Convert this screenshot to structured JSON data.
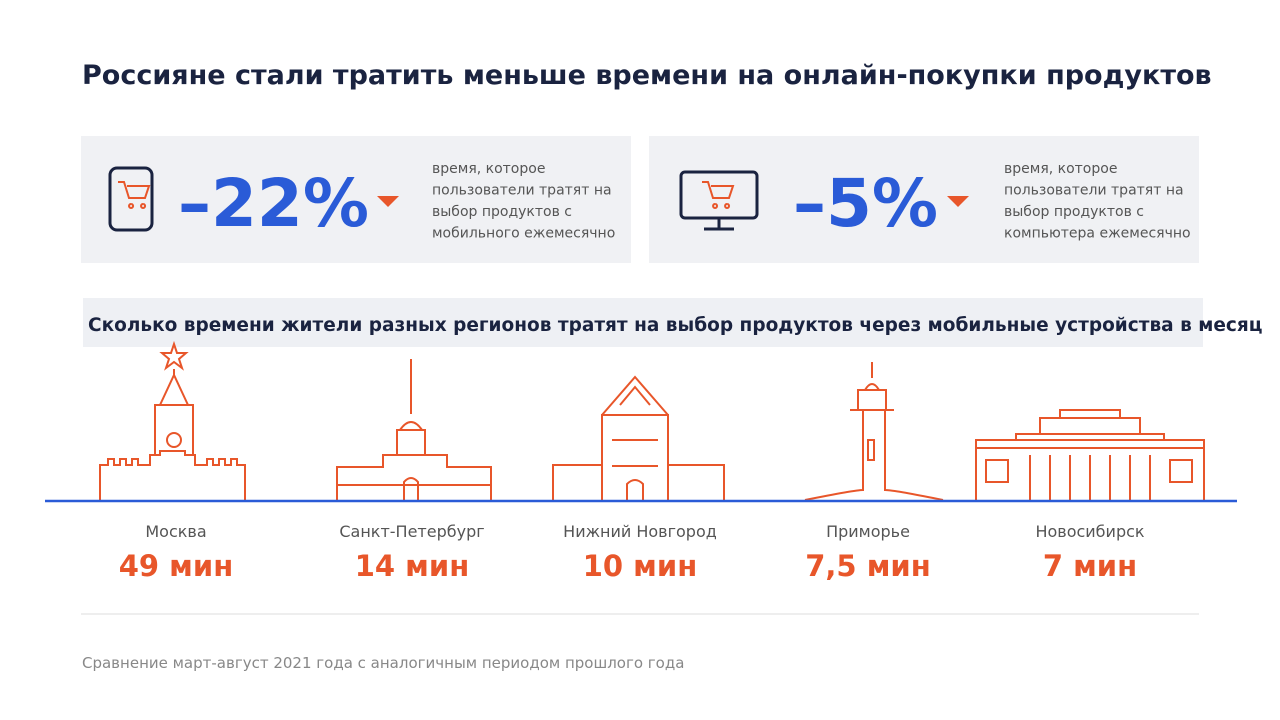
{
  "title": "Россияне стали тратить меньше времени на онлайн-покупки продуктов",
  "stats": [
    {
      "value": "–22%",
      "description_lines": [
        "время, которое",
        "пользователи тратят на",
        "выбор продуктов с",
        "мобильного ежемесячно"
      ]
    },
    {
      "value": "–5%",
      "description_lines": [
        "время, которое",
        "пользователи тратят на",
        "выбор продуктов с",
        "компьютера ежемесячно"
      ]
    }
  ],
  "regions_title": "Сколько времени жители разных регионов тратят на выбор продуктов через мобильные устройства в месяц",
  "regions": [
    {
      "name": "Москва",
      "time": "49 мин"
    },
    {
      "name": "Санкт-Петербург",
      "time": "14 мин"
    },
    {
      "name": "Нижний Новгород",
      "time": "10 мин"
    },
    {
      "name": "Приморье",
      "time": "7,5 мин"
    },
    {
      "name": "Новосибирск",
      "time": "7 мин"
    }
  ],
  "footnote": "Сравнение март-август 2021 года с аналогичным периодом прошлого года"
}
